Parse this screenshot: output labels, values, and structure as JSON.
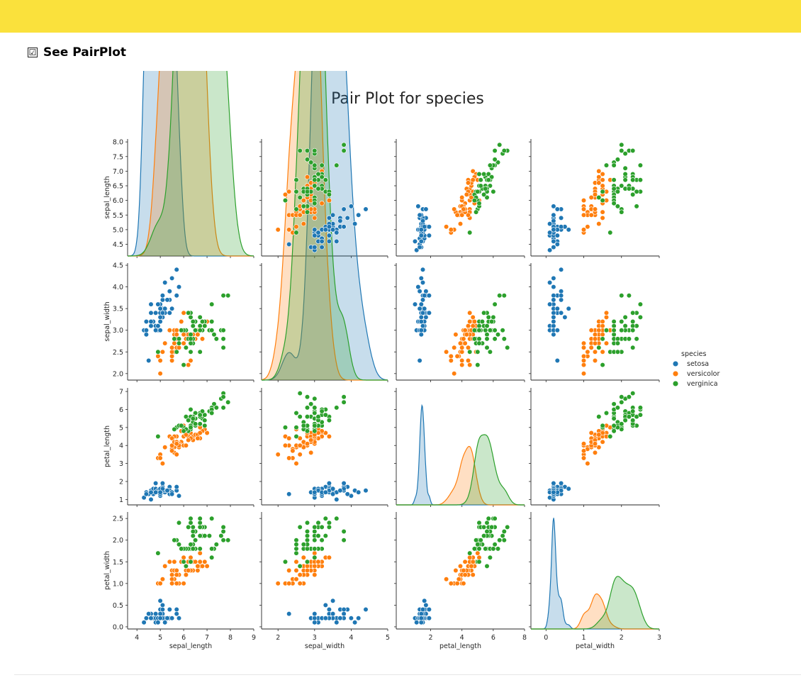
{
  "colors": {
    "topbar": "#FAE13C",
    "setosa": "#1f77b4",
    "versicolor": "#ff7f0e",
    "verginica": "#2ca02c"
  },
  "checkbox": {
    "checked": true,
    "mark": "☑",
    "label": "See PairPlot"
  },
  "chart_data": {
    "type": "scatter",
    "title": "Pair Plot for species",
    "variables": [
      "sepal_length",
      "sepal_width",
      "petal_length",
      "petal_width"
    ],
    "x_axes": [
      {
        "label": "sepal_length",
        "range": [
          3.6,
          9.0
        ],
        "ticks": [
          "4",
          "5",
          "6",
          "7",
          "8",
          "9"
        ],
        "tick_values": [
          4,
          5,
          6,
          7,
          8,
          9
        ]
      },
      {
        "label": "sepal_width",
        "range": [
          1.55,
          5.0
        ],
        "ticks": [
          "2",
          "3",
          "4",
          "5"
        ],
        "tick_values": [
          2,
          3,
          4,
          5
        ]
      },
      {
        "label": "petal_length",
        "range": [
          -0.2,
          8.0
        ],
        "ticks": [
          "2",
          "4",
          "6",
          "8"
        ],
        "tick_values": [
          2,
          4,
          6,
          8
        ]
      },
      {
        "label": "petal_width",
        "range": [
          -0.4,
          3.0
        ],
        "ticks": [
          "0",
          "1",
          "2",
          "3"
        ],
        "tick_values": [
          0,
          1,
          2,
          3
        ]
      }
    ],
    "y_axes": [
      {
        "label": "sepal_length",
        "range": [
          4.1,
          8.1
        ],
        "ticks": [
          "4.5",
          "5.0",
          "5.5",
          "6.0",
          "6.5",
          "7.0",
          "7.5",
          "8.0"
        ],
        "tick_values": [
          4.5,
          5.0,
          5.5,
          6.0,
          6.5,
          7.0,
          7.5,
          8.0
        ]
      },
      {
        "label": "sepal_width",
        "range": [
          1.85,
          4.55
        ],
        "ticks": [
          "2.0",
          "2.5",
          "3.0",
          "3.5",
          "4.0",
          "4.5"
        ],
        "tick_values": [
          2.0,
          2.5,
          3.0,
          3.5,
          4.0,
          4.5
        ]
      },
      {
        "label": "petal_length",
        "range": [
          0.7,
          7.2
        ],
        "ticks": [
          "1",
          "2",
          "3",
          "4",
          "5",
          "6",
          "7"
        ],
        "tick_values": [
          1,
          2,
          3,
          4,
          5,
          6,
          7
        ]
      },
      {
        "label": "petal_width",
        "range": [
          -0.05,
          2.65
        ],
        "ticks": [
          "0.0",
          "0.5",
          "1.0",
          "1.5",
          "2.0",
          "2.5"
        ],
        "tick_values": [
          0.0,
          0.5,
          1.0,
          1.5,
          2.0,
          2.5
        ]
      }
    ],
    "legend": {
      "title": "species",
      "placement": "right"
    },
    "series": [
      {
        "name": "setosa",
        "color": "#1f77b4",
        "kde_peaks": [
          7.8,
          5.4,
          0.85,
          0.95
        ],
        "data": [
          [
            5.1,
            3.5,
            1.4,
            0.2
          ],
          [
            4.9,
            3.0,
            1.4,
            0.2
          ],
          [
            4.7,
            3.2,
            1.3,
            0.2
          ],
          [
            4.6,
            3.1,
            1.5,
            0.2
          ],
          [
            5.0,
            3.6,
            1.4,
            0.2
          ],
          [
            5.4,
            3.9,
            1.7,
            0.4
          ],
          [
            4.6,
            3.4,
            1.4,
            0.3
          ],
          [
            5.0,
            3.4,
            1.5,
            0.2
          ],
          [
            4.4,
            2.9,
            1.4,
            0.2
          ],
          [
            4.9,
            3.1,
            1.5,
            0.1
          ],
          [
            5.4,
            3.7,
            1.5,
            0.2
          ],
          [
            4.8,
            3.4,
            1.6,
            0.2
          ],
          [
            4.8,
            3.0,
            1.4,
            0.1
          ],
          [
            4.3,
            3.0,
            1.1,
            0.1
          ],
          [
            5.8,
            4.0,
            1.2,
            0.2
          ],
          [
            5.7,
            4.4,
            1.5,
            0.4
          ],
          [
            5.4,
            3.9,
            1.3,
            0.4
          ],
          [
            5.1,
            3.5,
            1.4,
            0.3
          ],
          [
            5.7,
            3.8,
            1.7,
            0.3
          ],
          [
            5.1,
            3.8,
            1.5,
            0.3
          ],
          [
            5.4,
            3.4,
            1.7,
            0.2
          ],
          [
            5.1,
            3.7,
            1.5,
            0.4
          ],
          [
            4.6,
            3.6,
            1.0,
            0.2
          ],
          [
            5.1,
            3.3,
            1.7,
            0.5
          ],
          [
            4.8,
            3.4,
            1.9,
            0.2
          ],
          [
            5.0,
            3.0,
            1.6,
            0.2
          ],
          [
            5.0,
            3.4,
            1.6,
            0.4
          ],
          [
            5.2,
            3.5,
            1.5,
            0.2
          ],
          [
            5.2,
            3.4,
            1.4,
            0.2
          ],
          [
            4.7,
            3.2,
            1.6,
            0.2
          ],
          [
            4.8,
            3.1,
            1.6,
            0.2
          ],
          [
            5.4,
            3.4,
            1.5,
            0.4
          ],
          [
            5.2,
            4.1,
            1.5,
            0.1
          ],
          [
            5.5,
            4.2,
            1.4,
            0.2
          ],
          [
            4.9,
            3.1,
            1.5,
            0.2
          ],
          [
            5.0,
            3.2,
            1.2,
            0.2
          ],
          [
            5.5,
            3.5,
            1.3,
            0.2
          ],
          [
            4.9,
            3.6,
            1.4,
            0.1
          ],
          [
            4.4,
            3.0,
            1.3,
            0.2
          ],
          [
            5.1,
            3.4,
            1.5,
            0.2
          ],
          [
            5.0,
            3.5,
            1.3,
            0.3
          ],
          [
            4.5,
            2.3,
            1.3,
            0.3
          ],
          [
            4.4,
            3.2,
            1.3,
            0.2
          ],
          [
            5.0,
            3.5,
            1.6,
            0.6
          ],
          [
            5.1,
            3.8,
            1.9,
            0.4
          ],
          [
            4.8,
            3.0,
            1.4,
            0.3
          ],
          [
            5.1,
            3.8,
            1.6,
            0.2
          ],
          [
            4.6,
            3.2,
            1.4,
            0.2
          ],
          [
            5.3,
            3.7,
            1.5,
            0.2
          ],
          [
            5.0,
            3.3,
            1.4,
            0.2
          ]
        ]
      },
      {
        "name": "versicolor",
        "color": "#ff7f0e",
        "kde_peaks": [
          6.5,
          4.6,
          0.5,
          0.3
        ],
        "data": [
          [
            7.0,
            3.2,
            4.7,
            1.4
          ],
          [
            6.4,
            3.2,
            4.5,
            1.5
          ],
          [
            6.9,
            3.1,
            4.9,
            1.5
          ],
          [
            5.5,
            2.3,
            4.0,
            1.3
          ],
          [
            6.5,
            2.8,
            4.6,
            1.5
          ],
          [
            5.7,
            2.8,
            4.5,
            1.3
          ],
          [
            6.3,
            3.3,
            4.7,
            1.6
          ],
          [
            4.9,
            2.4,
            3.3,
            1.0
          ],
          [
            6.6,
            2.9,
            4.6,
            1.3
          ],
          [
            5.2,
            2.7,
            3.9,
            1.4
          ],
          [
            5.0,
            2.0,
            3.5,
            1.0
          ],
          [
            5.9,
            3.0,
            4.2,
            1.5
          ],
          [
            6.0,
            2.2,
            4.0,
            1.0
          ],
          [
            6.1,
            2.9,
            4.7,
            1.4
          ],
          [
            5.6,
            2.9,
            3.6,
            1.3
          ],
          [
            6.7,
            3.1,
            4.4,
            1.4
          ],
          [
            5.6,
            3.0,
            4.5,
            1.5
          ],
          [
            5.8,
            2.7,
            4.1,
            1.0
          ],
          [
            6.2,
            2.2,
            4.5,
            1.5
          ],
          [
            5.6,
            2.5,
            3.9,
            1.1
          ],
          [
            5.9,
            3.2,
            4.8,
            1.8
          ],
          [
            6.1,
            2.8,
            4.0,
            1.3
          ],
          [
            6.3,
            2.5,
            4.9,
            1.5
          ],
          [
            6.1,
            2.8,
            4.7,
            1.2
          ],
          [
            6.4,
            2.9,
            4.3,
            1.3
          ],
          [
            6.6,
            3.0,
            4.4,
            1.4
          ],
          [
            6.8,
            2.8,
            4.8,
            1.4
          ],
          [
            6.7,
            3.0,
            5.0,
            1.7
          ],
          [
            6.0,
            2.9,
            4.5,
            1.5
          ],
          [
            5.7,
            2.6,
            3.5,
            1.0
          ],
          [
            5.5,
            2.4,
            3.8,
            1.1
          ],
          [
            5.5,
            2.4,
            3.7,
            1.0
          ],
          [
            5.8,
            2.7,
            3.9,
            1.2
          ],
          [
            6.0,
            2.7,
            5.1,
            1.6
          ],
          [
            5.4,
            3.0,
            4.5,
            1.5
          ],
          [
            6.0,
            3.4,
            4.5,
            1.6
          ],
          [
            6.7,
            3.1,
            4.7,
            1.5
          ],
          [
            6.3,
            2.3,
            4.4,
            1.3
          ],
          [
            5.6,
            3.0,
            4.1,
            1.3
          ],
          [
            5.5,
            2.5,
            4.0,
            1.3
          ],
          [
            5.5,
            2.6,
            4.4,
            1.2
          ],
          [
            6.1,
            3.0,
            4.6,
            1.4
          ],
          [
            5.8,
            2.6,
            4.0,
            1.2
          ],
          [
            5.0,
            2.3,
            3.3,
            1.0
          ],
          [
            5.6,
            2.7,
            4.2,
            1.3
          ],
          [
            5.7,
            3.0,
            4.2,
            1.2
          ],
          [
            5.7,
            2.9,
            4.2,
            1.3
          ],
          [
            6.2,
            2.9,
            4.3,
            1.3
          ],
          [
            5.1,
            2.5,
            3.0,
            1.1
          ],
          [
            5.7,
            2.8,
            4.1,
            1.3
          ]
        ]
      },
      {
        "name": "verginica",
        "color": "#2ca02c",
        "kde_peaks": [
          6.1,
          4.9,
          0.6,
          0.45
        ],
        "data": [
          [
            6.3,
            3.3,
            6.0,
            2.5
          ],
          [
            5.8,
            2.7,
            5.1,
            1.9
          ],
          [
            7.1,
            3.0,
            5.9,
            2.1
          ],
          [
            6.3,
            2.9,
            5.6,
            1.8
          ],
          [
            6.5,
            3.0,
            5.8,
            2.2
          ],
          [
            7.6,
            3.0,
            6.6,
            2.1
          ],
          [
            4.9,
            2.5,
            4.5,
            1.7
          ],
          [
            7.3,
            2.9,
            6.3,
            1.8
          ],
          [
            6.7,
            2.5,
            5.8,
            1.8
          ],
          [
            7.2,
            3.6,
            6.1,
            2.5
          ],
          [
            6.5,
            3.2,
            5.1,
            2.0
          ],
          [
            6.4,
            2.7,
            5.3,
            1.9
          ],
          [
            6.8,
            3.0,
            5.5,
            2.1
          ],
          [
            5.7,
            2.5,
            5.0,
            2.0
          ],
          [
            5.8,
            2.8,
            5.1,
            2.4
          ],
          [
            6.4,
            3.2,
            5.3,
            2.3
          ],
          [
            6.5,
            3.0,
            5.5,
            1.8
          ],
          [
            7.7,
            3.8,
            6.7,
            2.2
          ],
          [
            7.7,
            2.6,
            6.9,
            2.3
          ],
          [
            6.0,
            2.2,
            5.0,
            1.5
          ],
          [
            6.9,
            3.2,
            5.7,
            2.3
          ],
          [
            5.6,
            2.8,
            4.9,
            2.0
          ],
          [
            7.7,
            2.8,
            6.7,
            2.0
          ],
          [
            6.3,
            2.7,
            4.9,
            1.8
          ],
          [
            6.7,
            3.3,
            5.7,
            2.1
          ],
          [
            7.2,
            3.2,
            6.0,
            1.8
          ],
          [
            6.2,
            2.8,
            4.8,
            1.8
          ],
          [
            6.1,
            3.0,
            4.9,
            1.8
          ],
          [
            6.4,
            2.8,
            5.6,
            2.1
          ],
          [
            7.2,
            3.0,
            5.8,
            1.6
          ],
          [
            7.4,
            2.8,
            6.1,
            1.9
          ],
          [
            7.9,
            3.8,
            6.4,
            2.0
          ],
          [
            6.4,
            2.8,
            5.6,
            2.2
          ],
          [
            6.3,
            2.8,
            5.1,
            1.5
          ],
          [
            6.1,
            2.6,
            5.6,
            1.4
          ],
          [
            7.7,
            3.0,
            6.1,
            2.3
          ],
          [
            6.3,
            3.4,
            5.6,
            2.4
          ],
          [
            6.4,
            3.1,
            5.5,
            1.8
          ],
          [
            6.0,
            3.0,
            4.8,
            1.8
          ],
          [
            6.9,
            3.1,
            5.4,
            2.1
          ],
          [
            6.7,
            3.1,
            5.6,
            2.4
          ],
          [
            6.9,
            3.1,
            5.1,
            2.3
          ],
          [
            5.8,
            2.7,
            5.1,
            1.9
          ],
          [
            6.8,
            3.2,
            5.9,
            2.3
          ],
          [
            6.7,
            3.3,
            5.7,
            2.5
          ],
          [
            6.7,
            3.0,
            5.2,
            2.3
          ],
          [
            6.3,
            2.5,
            5.0,
            1.9
          ],
          [
            6.5,
            3.0,
            5.2,
            2.0
          ],
          [
            6.2,
            3.4,
            5.4,
            2.3
          ],
          [
            5.9,
            3.0,
            5.1,
            1.8
          ]
        ]
      }
    ]
  }
}
